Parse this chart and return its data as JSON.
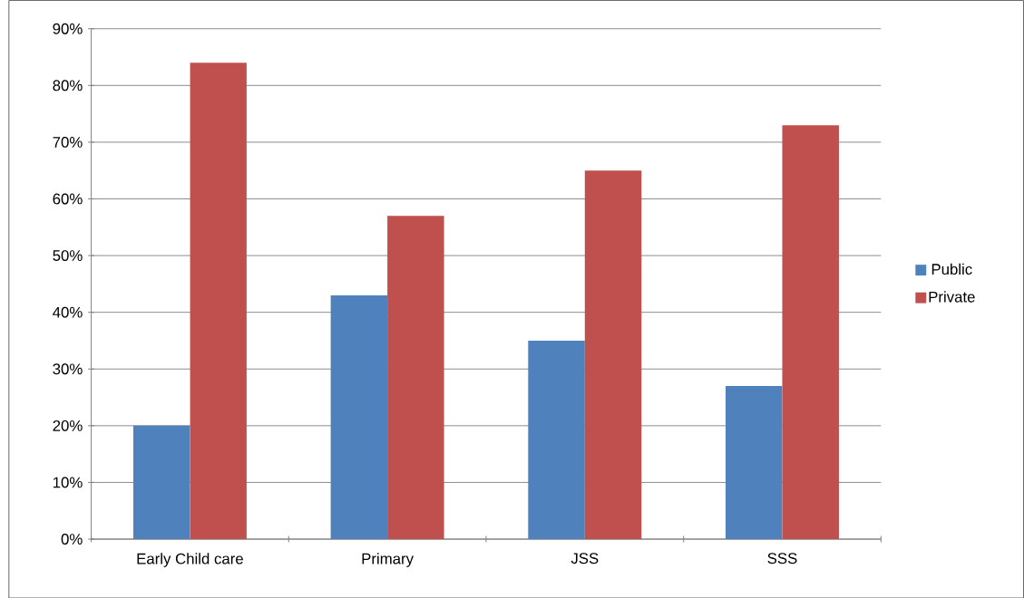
{
  "chart_data": {
    "type": "bar",
    "categories": [
      "Early Child care",
      "Primary",
      "JSS",
      "SSS"
    ],
    "series": [
      {
        "name": "Public",
        "color": "#4f81bd",
        "values": [
          20,
          43,
          35,
          27
        ]
      },
      {
        "name": "Private",
        "color": "#c0504d",
        "values": [
          84,
          57,
          65,
          73
        ]
      }
    ],
    "ylim": [
      0,
      90
    ],
    "yticks": [
      {
        "value": 0,
        "label": "0%"
      },
      {
        "value": 10,
        "label": "10%"
      },
      {
        "value": 20,
        "label": "20%"
      },
      {
        "value": 30,
        "label": "30%"
      },
      {
        "value": 40,
        "label": "40%"
      },
      {
        "value": 50,
        "label": "50%"
      },
      {
        "value": 60,
        "label": "60%"
      },
      {
        "value": 70,
        "label": "70%"
      },
      {
        "value": 80,
        "label": "80%"
      },
      {
        "value": 90,
        "label": "90%"
      }
    ],
    "grid": "y",
    "legend": "right"
  }
}
